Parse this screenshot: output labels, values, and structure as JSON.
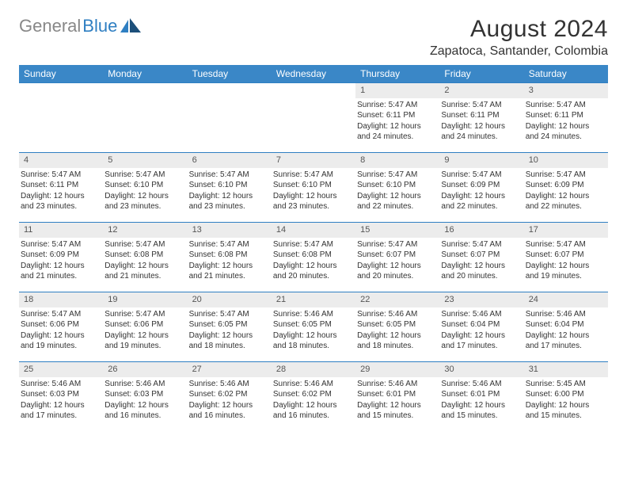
{
  "logo": {
    "gray": "General",
    "blue": "Blue"
  },
  "title": "August 2024",
  "location": "Zapatoca, Santander, Colombia",
  "colors": {
    "header_bg": "#3a87c7",
    "header_text": "#ffffff",
    "border": "#2f7fc2",
    "daynum_bg": "#ececec",
    "body_text": "#333333",
    "logo_gray": "#888888",
    "logo_blue": "#2f7fc2"
  },
  "weekdays": [
    "Sunday",
    "Monday",
    "Tuesday",
    "Wednesday",
    "Thursday",
    "Friday",
    "Saturday"
  ],
  "weeks": [
    [
      null,
      null,
      null,
      null,
      {
        "n": "1",
        "sr": "Sunrise: 5:47 AM",
        "ss": "Sunset: 6:11 PM",
        "d1": "Daylight: 12 hours",
        "d2": "and 24 minutes."
      },
      {
        "n": "2",
        "sr": "Sunrise: 5:47 AM",
        "ss": "Sunset: 6:11 PM",
        "d1": "Daylight: 12 hours",
        "d2": "and 24 minutes."
      },
      {
        "n": "3",
        "sr": "Sunrise: 5:47 AM",
        "ss": "Sunset: 6:11 PM",
        "d1": "Daylight: 12 hours",
        "d2": "and 24 minutes."
      }
    ],
    [
      {
        "n": "4",
        "sr": "Sunrise: 5:47 AM",
        "ss": "Sunset: 6:11 PM",
        "d1": "Daylight: 12 hours",
        "d2": "and 23 minutes."
      },
      {
        "n": "5",
        "sr": "Sunrise: 5:47 AM",
        "ss": "Sunset: 6:10 PM",
        "d1": "Daylight: 12 hours",
        "d2": "and 23 minutes."
      },
      {
        "n": "6",
        "sr": "Sunrise: 5:47 AM",
        "ss": "Sunset: 6:10 PM",
        "d1": "Daylight: 12 hours",
        "d2": "and 23 minutes."
      },
      {
        "n": "7",
        "sr": "Sunrise: 5:47 AM",
        "ss": "Sunset: 6:10 PM",
        "d1": "Daylight: 12 hours",
        "d2": "and 23 minutes."
      },
      {
        "n": "8",
        "sr": "Sunrise: 5:47 AM",
        "ss": "Sunset: 6:10 PM",
        "d1": "Daylight: 12 hours",
        "d2": "and 22 minutes."
      },
      {
        "n": "9",
        "sr": "Sunrise: 5:47 AM",
        "ss": "Sunset: 6:09 PM",
        "d1": "Daylight: 12 hours",
        "d2": "and 22 minutes."
      },
      {
        "n": "10",
        "sr": "Sunrise: 5:47 AM",
        "ss": "Sunset: 6:09 PM",
        "d1": "Daylight: 12 hours",
        "d2": "and 22 minutes."
      }
    ],
    [
      {
        "n": "11",
        "sr": "Sunrise: 5:47 AM",
        "ss": "Sunset: 6:09 PM",
        "d1": "Daylight: 12 hours",
        "d2": "and 21 minutes."
      },
      {
        "n": "12",
        "sr": "Sunrise: 5:47 AM",
        "ss": "Sunset: 6:08 PM",
        "d1": "Daylight: 12 hours",
        "d2": "and 21 minutes."
      },
      {
        "n": "13",
        "sr": "Sunrise: 5:47 AM",
        "ss": "Sunset: 6:08 PM",
        "d1": "Daylight: 12 hours",
        "d2": "and 21 minutes."
      },
      {
        "n": "14",
        "sr": "Sunrise: 5:47 AM",
        "ss": "Sunset: 6:08 PM",
        "d1": "Daylight: 12 hours",
        "d2": "and 20 minutes."
      },
      {
        "n": "15",
        "sr": "Sunrise: 5:47 AM",
        "ss": "Sunset: 6:07 PM",
        "d1": "Daylight: 12 hours",
        "d2": "and 20 minutes."
      },
      {
        "n": "16",
        "sr": "Sunrise: 5:47 AM",
        "ss": "Sunset: 6:07 PM",
        "d1": "Daylight: 12 hours",
        "d2": "and 20 minutes."
      },
      {
        "n": "17",
        "sr": "Sunrise: 5:47 AM",
        "ss": "Sunset: 6:07 PM",
        "d1": "Daylight: 12 hours",
        "d2": "and 19 minutes."
      }
    ],
    [
      {
        "n": "18",
        "sr": "Sunrise: 5:47 AM",
        "ss": "Sunset: 6:06 PM",
        "d1": "Daylight: 12 hours",
        "d2": "and 19 minutes."
      },
      {
        "n": "19",
        "sr": "Sunrise: 5:47 AM",
        "ss": "Sunset: 6:06 PM",
        "d1": "Daylight: 12 hours",
        "d2": "and 19 minutes."
      },
      {
        "n": "20",
        "sr": "Sunrise: 5:47 AM",
        "ss": "Sunset: 6:05 PM",
        "d1": "Daylight: 12 hours",
        "d2": "and 18 minutes."
      },
      {
        "n": "21",
        "sr": "Sunrise: 5:46 AM",
        "ss": "Sunset: 6:05 PM",
        "d1": "Daylight: 12 hours",
        "d2": "and 18 minutes."
      },
      {
        "n": "22",
        "sr": "Sunrise: 5:46 AM",
        "ss": "Sunset: 6:05 PM",
        "d1": "Daylight: 12 hours",
        "d2": "and 18 minutes."
      },
      {
        "n": "23",
        "sr": "Sunrise: 5:46 AM",
        "ss": "Sunset: 6:04 PM",
        "d1": "Daylight: 12 hours",
        "d2": "and 17 minutes."
      },
      {
        "n": "24",
        "sr": "Sunrise: 5:46 AM",
        "ss": "Sunset: 6:04 PM",
        "d1": "Daylight: 12 hours",
        "d2": "and 17 minutes."
      }
    ],
    [
      {
        "n": "25",
        "sr": "Sunrise: 5:46 AM",
        "ss": "Sunset: 6:03 PM",
        "d1": "Daylight: 12 hours",
        "d2": "and 17 minutes."
      },
      {
        "n": "26",
        "sr": "Sunrise: 5:46 AM",
        "ss": "Sunset: 6:03 PM",
        "d1": "Daylight: 12 hours",
        "d2": "and 16 minutes."
      },
      {
        "n": "27",
        "sr": "Sunrise: 5:46 AM",
        "ss": "Sunset: 6:02 PM",
        "d1": "Daylight: 12 hours",
        "d2": "and 16 minutes."
      },
      {
        "n": "28",
        "sr": "Sunrise: 5:46 AM",
        "ss": "Sunset: 6:02 PM",
        "d1": "Daylight: 12 hours",
        "d2": "and 16 minutes."
      },
      {
        "n": "29",
        "sr": "Sunrise: 5:46 AM",
        "ss": "Sunset: 6:01 PM",
        "d1": "Daylight: 12 hours",
        "d2": "and 15 minutes."
      },
      {
        "n": "30",
        "sr": "Sunrise: 5:46 AM",
        "ss": "Sunset: 6:01 PM",
        "d1": "Daylight: 12 hours",
        "d2": "and 15 minutes."
      },
      {
        "n": "31",
        "sr": "Sunrise: 5:45 AM",
        "ss": "Sunset: 6:00 PM",
        "d1": "Daylight: 12 hours",
        "d2": "and 15 minutes."
      }
    ]
  ]
}
